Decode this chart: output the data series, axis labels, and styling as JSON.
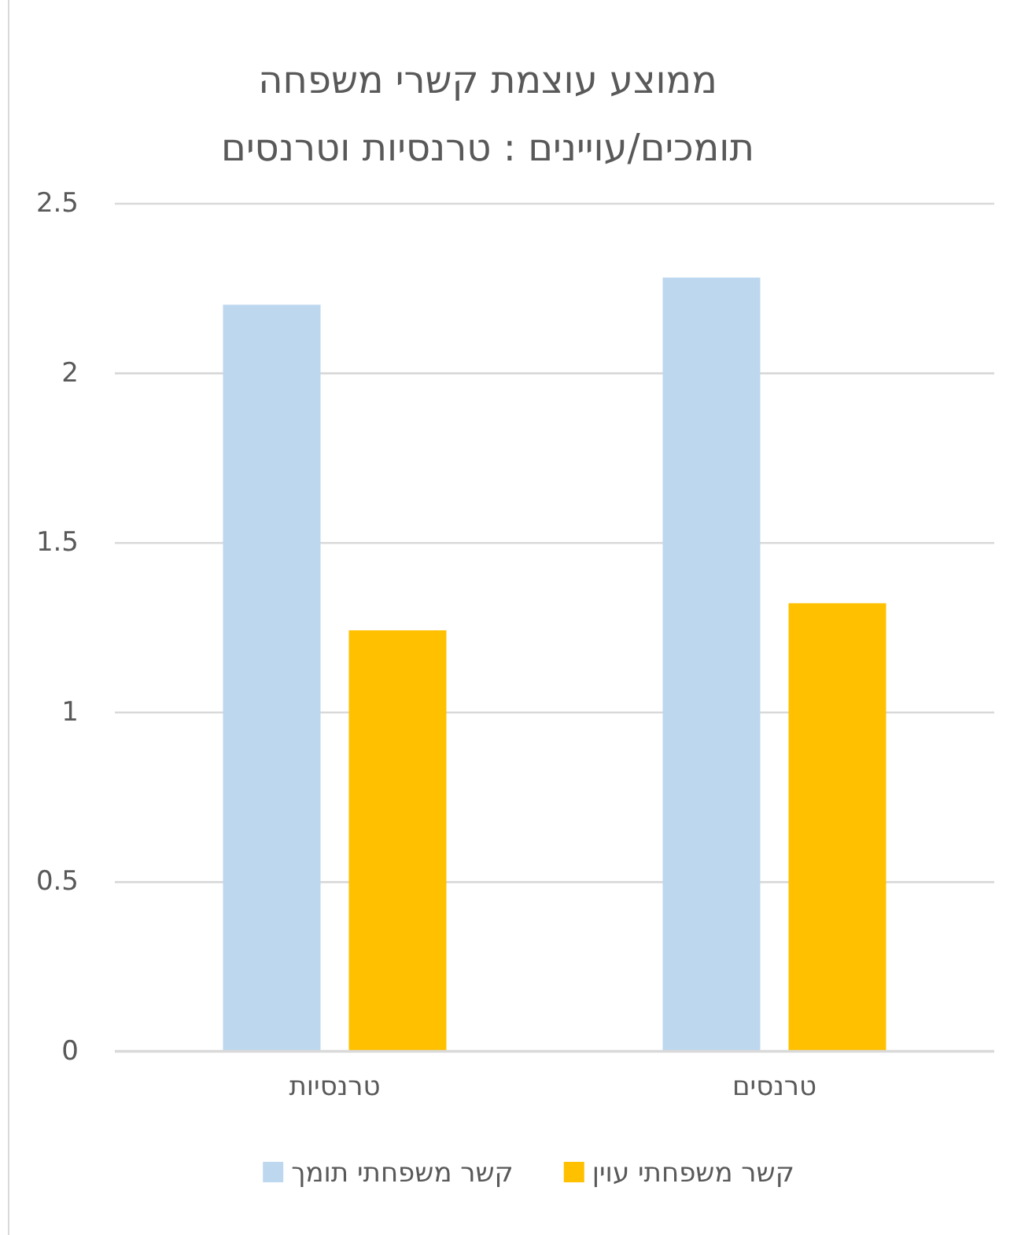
{
  "chart_data": {
    "type": "bar",
    "title": "ממוצע עוצמת קשרי משפחה\nתומכים/עויינים : טרנסיות וטרנסים",
    "categories": [
      "טרנסיות",
      "טרנסים"
    ],
    "series": [
      {
        "name": "קשר משפחתי תומך",
        "color": "#bdd7ee",
        "values": [
          2.2,
          2.28
        ]
      },
      {
        "name": "קשר משפחתי עוין",
        "color": "#ffc000",
        "values": [
          1.24,
          1.32
        ]
      }
    ],
    "ylim": [
      0,
      2.5
    ],
    "yticks": [
      0,
      0.5,
      1,
      1.5,
      2,
      2.5
    ],
    "grid": "y",
    "legend": "bottom"
  }
}
